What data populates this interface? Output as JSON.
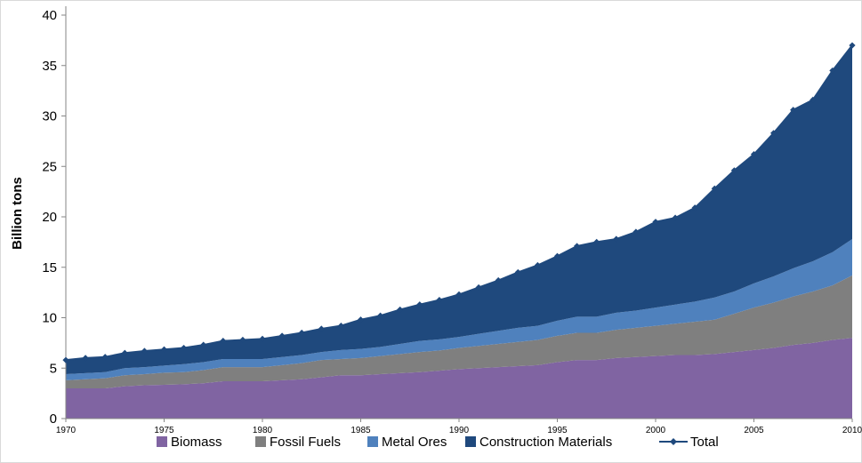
{
  "chart_data": {
    "type": "area",
    "title": "",
    "xlabel": "",
    "ylabel": "Billion tons",
    "xlim": [
      1970,
      2010
    ],
    "ylim": [
      0,
      40
    ],
    "y_ticks": [
      "0",
      "5",
      "10",
      "15",
      "20",
      "25",
      "30",
      "35",
      "40"
    ],
    "x_ticks": [
      "1970",
      "1975",
      "1980",
      "1985",
      "1990",
      "1995",
      "2000",
      "2005",
      "2010"
    ],
    "stacked": true,
    "grid": false,
    "legend_position": "bottom",
    "x": [
      1970,
      1971,
      1972,
      1973,
      1974,
      1975,
      1976,
      1977,
      1978,
      1979,
      1980,
      1981,
      1982,
      1983,
      1984,
      1985,
      1986,
      1987,
      1988,
      1989,
      1990,
      1991,
      1992,
      1993,
      1994,
      1995,
      1996,
      1997,
      1998,
      1999,
      2000,
      2001,
      2002,
      2003,
      2004,
      2005,
      2006,
      2007,
      2008,
      2009,
      2010
    ],
    "series": [
      {
        "name": "Biomass",
        "color": "#8064a2",
        "values": [
          3.0,
          3.0,
          3.0,
          3.2,
          3.3,
          3.35,
          3.4,
          3.5,
          3.7,
          3.7,
          3.7,
          3.8,
          3.9,
          4.1,
          4.3,
          4.3,
          4.4,
          4.5,
          4.6,
          4.75,
          4.9,
          5.0,
          5.1,
          5.2,
          5.3,
          5.6,
          5.8,
          5.8,
          6.0,
          6.1,
          6.2,
          6.3,
          6.3,
          6.4,
          6.6,
          6.8,
          7.0,
          7.3,
          7.5,
          7.8,
          8.0
        ]
      },
      {
        "name": "Fossil Fuels",
        "color": "#7f7f7f",
        "values": [
          0.8,
          0.9,
          1.0,
          1.1,
          1.1,
          1.2,
          1.2,
          1.3,
          1.4,
          1.4,
          1.4,
          1.5,
          1.6,
          1.7,
          1.6,
          1.7,
          1.8,
          1.9,
          2.0,
          2.0,
          2.1,
          2.2,
          2.3,
          2.4,
          2.5,
          2.6,
          2.7,
          2.7,
          2.8,
          2.9,
          3.0,
          3.1,
          3.3,
          3.4,
          3.8,
          4.2,
          4.5,
          4.8,
          5.1,
          5.4,
          6.2
        ]
      },
      {
        "name": "Metal Ores",
        "color": "#4f81bd",
        "values": [
          0.6,
          0.6,
          0.6,
          0.7,
          0.7,
          0.7,
          0.8,
          0.8,
          0.8,
          0.8,
          0.8,
          0.8,
          0.8,
          0.8,
          0.9,
          0.9,
          0.9,
          1.0,
          1.1,
          1.1,
          1.1,
          1.2,
          1.3,
          1.4,
          1.4,
          1.5,
          1.6,
          1.6,
          1.7,
          1.7,
          1.8,
          1.9,
          2.0,
          2.2,
          2.2,
          2.4,
          2.6,
          2.8,
          3.0,
          3.3,
          3.6
        ]
      },
      {
        "name": "Construction Materials",
        "color": "#1f497d",
        "values": [
          1.4,
          1.5,
          1.5,
          1.5,
          1.6,
          1.6,
          1.6,
          1.7,
          1.8,
          1.9,
          2.0,
          2.1,
          2.2,
          2.3,
          2.4,
          2.9,
          3.1,
          3.4,
          3.6,
          3.9,
          4.2,
          4.6,
          5.0,
          5.5,
          6.0,
          6.4,
          7.0,
          7.4,
          7.3,
          7.8,
          8.5,
          8.6,
          9.3,
          10.8,
          12.0,
          12.8,
          14.2,
          15.7,
          16.0,
          18.0,
          19.2
        ]
      },
      {
        "name": "Total",
        "color": "#1f497d",
        "values": [
          5.8,
          6.0,
          6.1,
          6.5,
          6.7,
          6.85,
          7.0,
          7.3,
          7.7,
          7.8,
          7.9,
          8.2,
          8.5,
          8.9,
          9.2,
          9.8,
          10.2,
          10.8,
          11.3,
          11.75,
          12.3,
          13.0,
          13.7,
          14.5,
          15.2,
          16.1,
          17.1,
          17.5,
          17.8,
          18.5,
          19.5,
          19.9,
          20.9,
          22.8,
          24.6,
          26.2,
          28.3,
          30.6,
          31.6,
          34.5,
          37.0
        ]
      }
    ]
  }
}
